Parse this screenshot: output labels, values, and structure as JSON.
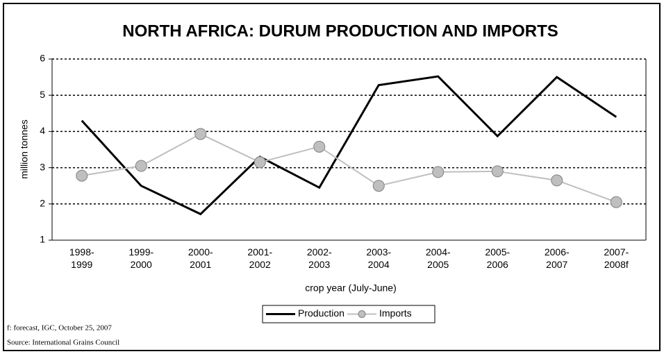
{
  "chart_data": {
    "type": "line",
    "title": "NORTH AFRICA: DURUM PRODUCTION AND IMPORTS",
    "x_label": "crop year (July-June)",
    "y_label": "million tonnes",
    "categories": [
      "1998-1999",
      "1999-2000",
      "2000-2001",
      "2001-2002",
      "2002-2003",
      "2003-2004",
      "2004-2005",
      "2005-2006",
      "2006-2007",
      "2007-2008f"
    ],
    "series": [
      {
        "name": "Production",
        "color": "#000000",
        "values": [
          4.3,
          2.5,
          1.72,
          3.3,
          2.45,
          5.28,
          5.52,
          3.87,
          5.5,
          4.4
        ]
      },
      {
        "name": "Imports",
        "color": "#bfbfbf",
        "values": [
          2.78,
          3.05,
          3.93,
          3.15,
          3.58,
          2.5,
          2.88,
          2.9,
          2.65,
          2.05
        ]
      }
    ],
    "ylim": [
      1,
      6
    ],
    "yticks": [
      1,
      2,
      3,
      4,
      5,
      6
    ],
    "grid": true,
    "legend": "bottom",
    "notes": [
      "f: forecast, IGC, October 25, 2007",
      "Source: International Grains Council"
    ]
  }
}
